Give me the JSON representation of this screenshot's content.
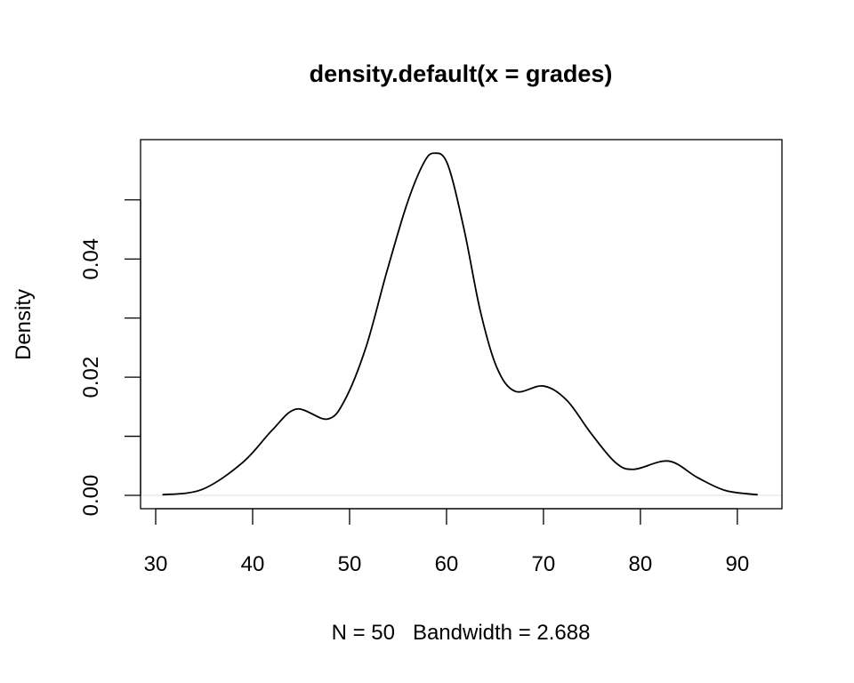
{
  "chart_data": {
    "type": "line",
    "title": "density.default(x = grades)",
    "xlabel": "N = 50   Bandwidth = 2.688",
    "ylabel": "Density",
    "xlim": [
      28.44,
      94.6
    ],
    "ylim": [
      -0.00226,
      0.0602
    ],
    "x_ticks": [
      30,
      40,
      50,
      60,
      70,
      80,
      90
    ],
    "x_tick_labels": [
      "30",
      "40",
      "50",
      "60",
      "70",
      "80",
      "90"
    ],
    "y_ticks": [
      0,
      0.01,
      0.02,
      0.03,
      0.04,
      0.05
    ],
    "y_tick_labels": [
      {
        "value": 0,
        "label": "0.00"
      },
      {
        "value": 0.02,
        "label": "0.02"
      },
      {
        "value": 0.04,
        "label": "0.04"
      }
    ],
    "grid": false,
    "zero_line_color": "#e6e6e6",
    "line_color": "#000000",
    "series": [
      {
        "name": "density",
        "x": [
          30.7,
          34.8,
          39.0,
          42.0,
          44.5,
          47.7,
          49.5,
          51.7,
          53.8,
          55.9,
          57.6,
          58.7,
          60.1,
          61.8,
          63.5,
          65.2,
          67.1,
          70.0,
          72.4,
          74.9,
          77.4,
          79.3,
          82.9,
          85.9,
          88.8,
          92.1
        ],
        "y": [
          0.0001,
          0.001,
          0.0056,
          0.011,
          0.0146,
          0.0129,
          0.0161,
          0.0251,
          0.0376,
          0.0492,
          0.0561,
          0.0579,
          0.0561,
          0.0451,
          0.0311,
          0.0216,
          0.0176,
          0.0185,
          0.0161,
          0.0105,
          0.0056,
          0.0044,
          0.0058,
          0.003,
          0.0008,
          0.0001
        ]
      }
    ]
  }
}
